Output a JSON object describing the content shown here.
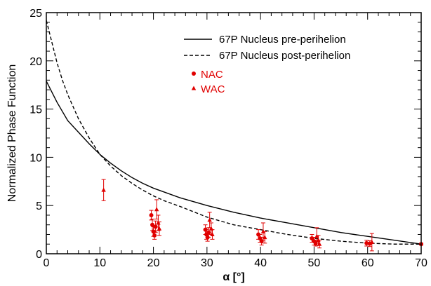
{
  "chart_data": {
    "type": "scatter",
    "title": "",
    "xlabel": "α [°]",
    "ylabel": "Normalized Phase Function",
    "xlim": [
      0,
      70
    ],
    "ylim": [
      0,
      25
    ],
    "x_ticks": [
      "0",
      "10",
      "20",
      "30",
      "40",
      "50",
      "60",
      "70"
    ],
    "y_ticks": [
      "0",
      "5",
      "10",
      "15",
      "20",
      "25"
    ],
    "grid": false,
    "legend_position": "top-right",
    "lines": [
      {
        "name": "67P Nucleus pre-perihelion",
        "style": "solid",
        "color": "#000000",
        "x": [
          0,
          2,
          4,
          6,
          8,
          10,
          12,
          14,
          16,
          18,
          20,
          22,
          25,
          30,
          35,
          40,
          45,
          50,
          55,
          60,
          65,
          70
        ],
        "y": [
          17.9,
          15.7,
          13.8,
          12.6,
          11.4,
          10.3,
          9.4,
          8.6,
          7.9,
          7.3,
          6.8,
          6.4,
          5.8,
          5.0,
          4.3,
          3.7,
          3.2,
          2.7,
          2.2,
          1.8,
          1.4,
          1.0
        ]
      },
      {
        "name": "67P Nucleus post-perihelion",
        "style": "dashed",
        "color": "#000000",
        "x": [
          0,
          1,
          2,
          3,
          4,
          6,
          8,
          10,
          12,
          14,
          16,
          18,
          20,
          22,
          25,
          30,
          35,
          40,
          45,
          50,
          55,
          60,
          65,
          70
        ],
        "y": [
          24.2,
          22.0,
          19.8,
          18.0,
          16.5,
          14.0,
          12.0,
          10.3,
          9.1,
          8.1,
          7.3,
          6.6,
          6.0,
          5.5,
          4.9,
          3.8,
          3.0,
          2.5,
          2.0,
          1.6,
          1.3,
          1.1,
          1.0,
          1.0
        ]
      }
    ],
    "series": [
      {
        "name": "NAC",
        "marker": "circle",
        "color": "#e00000",
        "x": [
          19.6,
          19.8,
          20.0,
          20.2,
          20.4,
          29.7,
          29.9,
          30.1,
          30.3,
          39.6,
          39.9,
          40.2,
          49.6,
          50.0,
          50.3,
          59.8,
          60.4,
          70.0
        ],
        "y": [
          4.0,
          3.0,
          2.3,
          1.9,
          2.8,
          2.5,
          2.0,
          1.7,
          2.2,
          2.0,
          1.6,
          1.3,
          1.6,
          1.3,
          1.1,
          1.1,
          1.05,
          1.0
        ],
        "err": [
          0.5,
          0.6,
          0.5,
          0.4,
          0.6,
          0.5,
          0.5,
          0.4,
          0.5,
          0.5,
          0.4,
          0.4,
          0.4,
          0.4,
          0.3,
          0.3,
          0.3,
          0.1
        ]
      },
      {
        "name": "WAC",
        "marker": "triangle",
        "color": "#e00000",
        "x": [
          10.7,
          20.6,
          20.9,
          21.1,
          30.5,
          30.8,
          31.0,
          40.5,
          40.8,
          50.5,
          50.8,
          51.0,
          60.8
        ],
        "y": [
          6.6,
          4.6,
          3.2,
          2.6,
          3.5,
          2.6,
          2.0,
          2.3,
          1.7,
          1.8,
          1.4,
          1.0,
          1.2
        ],
        "err": [
          1.1,
          1.0,
          0.8,
          0.7,
          0.8,
          0.6,
          0.5,
          0.9,
          0.6,
          0.9,
          0.5,
          0.4,
          0.9
        ]
      }
    ]
  }
}
